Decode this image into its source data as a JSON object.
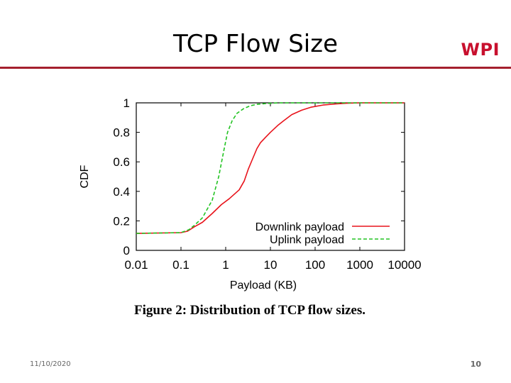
{
  "slide": {
    "title": "TCP Flow Size",
    "logo": "WPI",
    "date": "11/10/2020",
    "page": "10",
    "accent": "#a5202e"
  },
  "figure": {
    "caption": "Figure 2: Distribution of TCP flow sizes."
  },
  "chart_data": {
    "type": "line",
    "xlabel": "Payload (KB)",
    "ylabel": "CDF",
    "xscale": "log",
    "xlim": [
      0.01,
      10000
    ],
    "ylim": [
      0,
      1
    ],
    "xticks": [
      0.01,
      0.1,
      1,
      10,
      100,
      1000,
      10000
    ],
    "xtick_labels": [
      "0.01",
      "0.1",
      "1",
      "10",
      "100",
      "1000",
      "10000"
    ],
    "yticks": [
      0,
      0.2,
      0.4,
      0.6,
      0.8,
      1
    ],
    "ytick_labels": [
      "0",
      "0.2",
      "0.4",
      "0.6",
      "0.8",
      "1"
    ],
    "legend": "lower-right",
    "series": [
      {
        "name": "Downlink payload",
        "color": "#e8131b",
        "style": "solid",
        "x": [
          0.01,
          0.1,
          0.14,
          0.2,
          0.3,
          0.5,
          0.8,
          1.2,
          2,
          2.6,
          3.2,
          4,
          5,
          6,
          8,
          10,
          15,
          20,
          30,
          50,
          80,
          150,
          300,
          500,
          1000,
          5000,
          10000
        ],
        "y": [
          0.115,
          0.12,
          0.13,
          0.16,
          0.19,
          0.25,
          0.31,
          0.35,
          0.41,
          0.47,
          0.55,
          0.62,
          0.69,
          0.73,
          0.77,
          0.8,
          0.85,
          0.88,
          0.92,
          0.95,
          0.97,
          0.985,
          0.993,
          0.997,
          1.0,
          1.0,
          1.0
        ]
      },
      {
        "name": "Uplink payload",
        "color": "#22c322",
        "style": "dashed",
        "x": [
          0.01,
          0.1,
          0.15,
          0.2,
          0.3,
          0.5,
          0.7,
          0.9,
          1.1,
          1.4,
          1.8,
          2.5,
          3.5,
          5,
          8,
          15,
          30,
          10000
        ],
        "y": [
          0.115,
          0.12,
          0.14,
          0.17,
          0.22,
          0.34,
          0.5,
          0.67,
          0.8,
          0.88,
          0.93,
          0.96,
          0.98,
          0.99,
          0.995,
          1.0,
          1.0,
          1.0
        ]
      }
    ]
  }
}
